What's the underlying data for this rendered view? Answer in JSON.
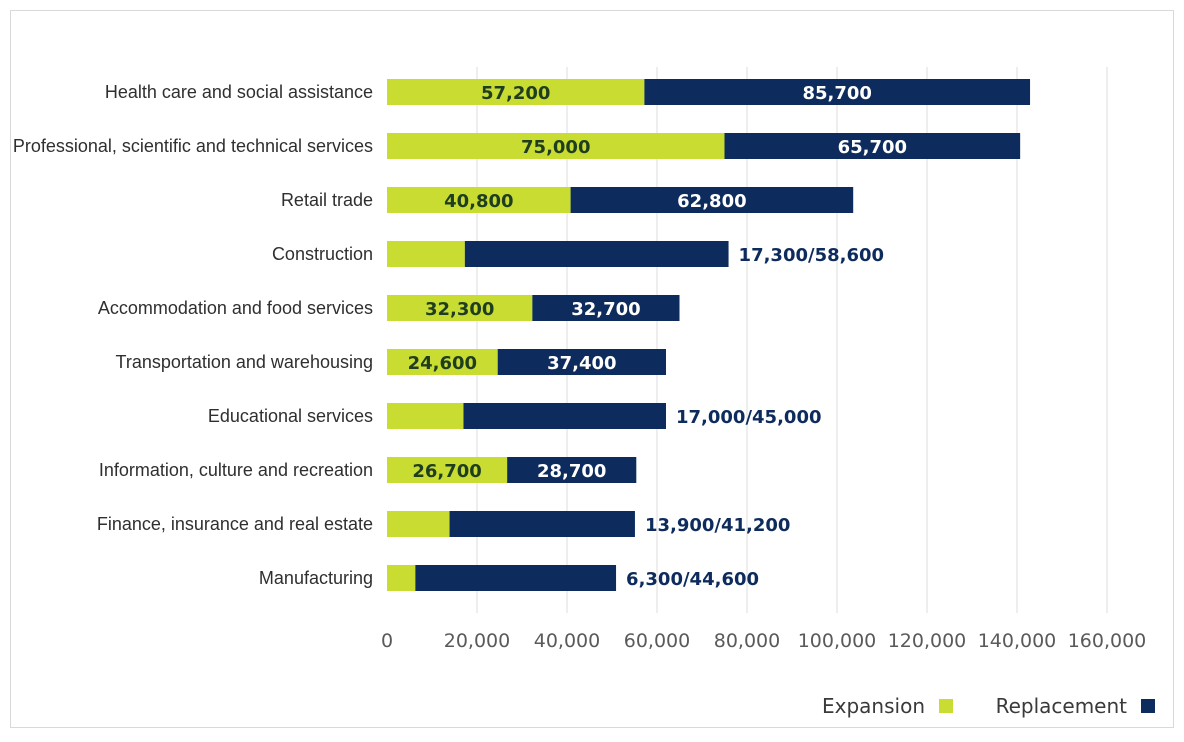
{
  "colors": {
    "expansion": "#c8dc32",
    "replacement": "#0d2b5c",
    "grid": "#dcdcdc",
    "label_dark_on_green": "#1f3d1f",
    "label_light": "#ffffff",
    "label_outside": "#0d2b5c"
  },
  "chart_data": {
    "type": "bar",
    "orientation": "horizontal",
    "stacked": true,
    "categories": [
      "Health care and social assistance",
      "Professional, scientific and technical services",
      "Retail trade",
      "Construction",
      "Accommodation and food services",
      "Transportation and warehousing",
      "Educational services",
      "Information, culture and recreation",
      "Finance, insurance and real estate",
      "Manufacturing"
    ],
    "series": [
      {
        "name": "Expansion",
        "values": [
          57200,
          75000,
          40800,
          17300,
          32300,
          24600,
          17000,
          26700,
          13900,
          6300
        ]
      },
      {
        "name": "Replacement",
        "values": [
          85700,
          65700,
          62800,
          58600,
          32700,
          37400,
          45000,
          28700,
          41200,
          44600
        ]
      }
    ],
    "inside_labels": {
      "expansion": [
        "57,200",
        "75,000",
        "40,800",
        "",
        "32,300",
        "24,600",
        "",
        "26,700",
        "",
        ""
      ],
      "replacement": [
        "85,700",
        "65,700",
        "62,800",
        "",
        "32,700",
        "37,400",
        "",
        "28,700",
        "",
        ""
      ]
    },
    "outside_labels": [
      "",
      "",
      "",
      "17,300/58,600",
      "",
      "",
      "17,000/45,000",
      "",
      "13,900/41,200",
      "6,300/44,600"
    ],
    "x_ticks": [
      0,
      20000,
      40000,
      60000,
      80000,
      100000,
      120000,
      140000,
      160000
    ],
    "x_tick_labels": [
      "0",
      "20,000",
      "40,000",
      "60,000",
      "80,000",
      "100,000",
      "120,000",
      "140,000",
      "160,000"
    ],
    "xlim": [
      0,
      160000
    ],
    "grid": true,
    "legend": {
      "position": "bottom-right",
      "entries": [
        "Expansion",
        "Replacement"
      ]
    }
  }
}
